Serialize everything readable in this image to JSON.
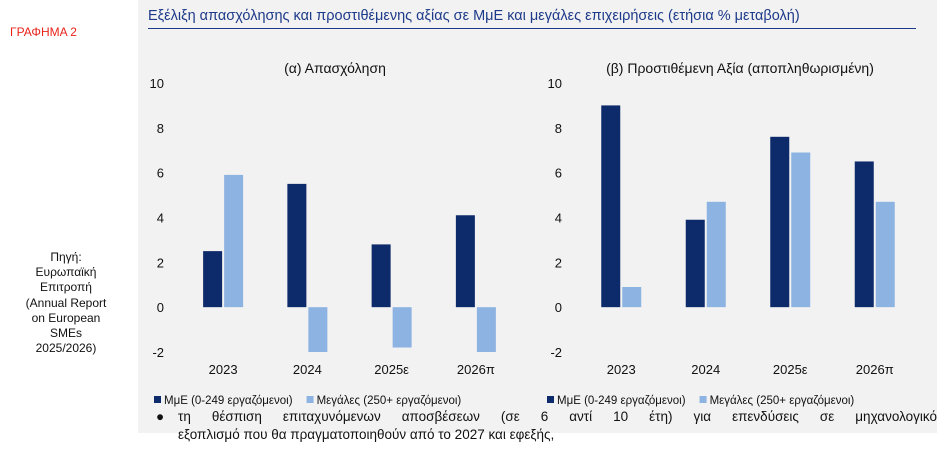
{
  "figure_label": "ΓΡΑΦΗΜΑ 2",
  "source_note": "Πηγή:\nΕυρωπαϊκή\nΕπιτροπή\n(Annual Report\non European\nSMEs\n2025/2026)",
  "header_title": "Εξέλιξη απασχόλησης και προστιθέμενης αξίας σε ΜμΕ και μεγάλες επιχειρήσεις (ετήσια % μεταβολή)",
  "colors": {
    "sme": "#0d2a6b",
    "large": "#8db3e2",
    "panel_bg": "#f2f2f2",
    "header": "#1d3a8a",
    "label_red": "#e8231a"
  },
  "chart_data": [
    {
      "type": "bar",
      "title": "(α) Απασχόληση",
      "categories": [
        "2023",
        "2024",
        "2025ε",
        "2026π"
      ],
      "series": [
        {
          "name": "ΜμΕ (0-249 εργαζόμενοι)",
          "values": [
            2.5,
            5.5,
            2.8,
            4.1
          ]
        },
        {
          "name": "Μεγάλες (250+ εργαζόμενοι)",
          "values": [
            5.9,
            -2.0,
            -1.8,
            -2.0
          ]
        }
      ],
      "ylim": [
        -2,
        10
      ],
      "yticks": [
        "-2",
        "0",
        "2",
        "4",
        "6",
        "8",
        "10"
      ],
      "xlabel": "",
      "ylabel": "",
      "grid": false,
      "legend": "bottom"
    },
    {
      "type": "bar",
      "title": "(β) Προστιθέμενη Αξία (αποπληθωρισμένη)",
      "categories": [
        "2023",
        "2024",
        "2025ε",
        "2026π"
      ],
      "series": [
        {
          "name": "ΜμΕ (0-249 εργαζόμενοι)",
          "values": [
            9.0,
            3.9,
            7.6,
            6.5
          ]
        },
        {
          "name": "Μεγάλες (250+ εργαζόμενοι)",
          "values": [
            0.9,
            4.7,
            6.9,
            4.7
          ]
        }
      ],
      "ylim": [
        -2,
        10
      ],
      "yticks": [
        "-2",
        "0",
        "2",
        "4",
        "6",
        "8",
        "10"
      ],
      "xlabel": "",
      "ylabel": "",
      "grid": false,
      "legend": "bottom"
    }
  ],
  "bullet": {
    "line1": "τη θέσπιση επιταχυνόμενων αποσβέσεων (σε 6 αντί 10 έτη) για επενδύσεις σε μηχανολογικό",
    "line2": "εξοπλισμό που θα πραγματοποιηθούν από το 2027 και εφεξής,"
  }
}
